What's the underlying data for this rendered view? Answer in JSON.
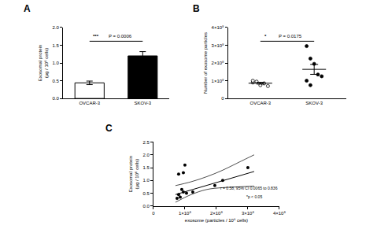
{
  "chart_data": [
    {
      "type": "bar",
      "panel_label": "A",
      "categories": [
        "OVCAR-3",
        "SKOV-3"
      ],
      "values": [
        0.44,
        1.2
      ],
      "errors": [
        0.05,
        0.12
      ],
      "colors": [
        "#ffffff",
        "#000000"
      ],
      "ylabel": [
        "Exosomal protein",
        "(µg / 10⁶ cells)"
      ],
      "ylim": [
        0,
        2
      ],
      "yticks": [
        {
          "value": 0,
          "label": "0.0"
        },
        0.5,
        {
          "value": 1,
          "label": "1.0"
        },
        1.5,
        {
          "value": 2,
          "label": "2.0"
        }
      ],
      "annotations": [
        "***",
        "P = 0.0006"
      ]
    },
    {
      "type": "scatter",
      "panel_label": "B",
      "series": [
        {
          "name": "OVCAR-3",
          "marker": "circle-open",
          "color": "#000000",
          "values": [
            90000000,
            95000000,
            75000000,
            85000000,
            70000000,
            100000000
          ],
          "mean": 86000000,
          "sem": 5000000
        },
        {
          "name": "SKOV-3",
          "marker": "circle",
          "color": "#000000",
          "values": [
            295000000,
            225000000,
            195000000,
            135000000,
            125000000,
            100000000,
            75000000
          ],
          "mean": 164000000,
          "sem": 28000000
        }
      ],
      "ylabel": "Number of exosome particles",
      "ylim": [
        0,
        400000000
      ],
      "yticks": [
        0,
        {
          "value": 100000000,
          "label": "1×10⁸"
        },
        {
          "value": 200000000,
          "label": "2×10⁸"
        },
        {
          "value": 300000000,
          "label": "3×10⁸"
        },
        {
          "value": 400000000,
          "label": "4×10⁸"
        }
      ],
      "annotations": [
        "*",
        "P = 0.0175"
      ]
    },
    {
      "type": "scatter",
      "panel_label": "C",
      "color": "#000000",
      "x": [
        75000000,
        85000000,
        80000000,
        95000000,
        105000000,
        90000000,
        80000000,
        95000000,
        100000000,
        125000000,
        195000000,
        220000000,
        300000000
      ],
      "values": [
        0.3,
        0.35,
        0.45,
        0.55,
        0.5,
        0.65,
        1.25,
        1.3,
        1.6,
        0.55,
        0.8,
        1.0,
        1.5
      ],
      "fit": {
        "x": [
          70000000,
          320000000
        ],
        "y": [
          0.45,
          1.35
        ]
      },
      "ci_upper": {
        "x": [
          70000000,
          120000000,
          170000000,
          220000000,
          270000000,
          320000000
        ],
        "y": [
          0.8,
          0.95,
          1.15,
          1.4,
          1.7,
          2.0
        ]
      },
      "ci_lower": {
        "x": [
          70000000,
          120000000,
          170000000,
          220000000,
          270000000,
          320000000
        ],
        "y": [
          0.15,
          0.45,
          0.65,
          0.72,
          0.75,
          0.78
        ]
      },
      "xlabel": "exosome (particles / 10⁶ cells)",
      "ylabel": [
        "Exosomal protein",
        "(µg / 10⁶ cells)"
      ],
      "xlim": [
        0,
        400000000
      ],
      "xticks": [
        0,
        {
          "value": 100000000,
          "label": "1×10⁸"
        },
        {
          "value": 200000000,
          "label": "2×10⁸"
        },
        {
          "value": 300000000,
          "label": "3×10⁸"
        },
        {
          "value": 400000000,
          "label": "4×10⁸"
        }
      ],
      "ylim": [
        0,
        2.5
      ],
      "yticks": [
        {
          "value": 0,
          "label": "0.0"
        },
        0.5,
        {
          "value": 1,
          "label": "1.0"
        },
        1.5,
        {
          "value": 2,
          "label": "2.0"
        },
        2.5
      ],
      "annotations": [
        "r = 0.58, 95% CI 0.0065 to 0.836",
        "*p < 0.05"
      ]
    }
  ]
}
